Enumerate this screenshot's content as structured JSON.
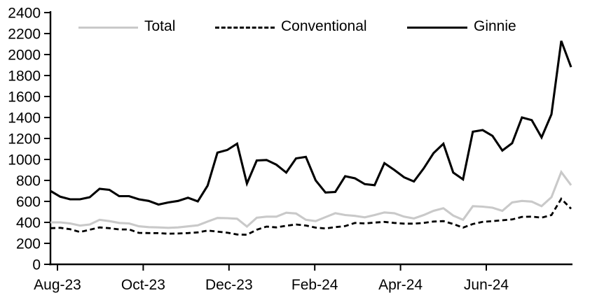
{
  "chart_data": {
    "type": "line",
    "title": "",
    "grid": false,
    "legend": {
      "position": "top"
    },
    "x_axis": {
      "tick_labels": [
        "Aug-23",
        "Oct-23",
        "Dec-23",
        "Feb-24",
        "Apr-24",
        "Jun-24"
      ]
    },
    "y_axis": {
      "min": 0,
      "max": 2400,
      "tick_step": 200,
      "tick_labels": [
        "0",
        "200",
        "400",
        "600",
        "800",
        "1000",
        "1200",
        "1400",
        "1600",
        "1800",
        "2000",
        "2200",
        "2400"
      ]
    },
    "series": [
      {
        "name": "Total",
        "color": "#c9c9c9",
        "line_style": "solid",
        "values": [
          400,
          400,
          390,
          370,
          380,
          425,
          412,
          395,
          390,
          363,
          355,
          352,
          348,
          352,
          362,
          372,
          408,
          442,
          440,
          435,
          360,
          445,
          455,
          455,
          492,
          485,
          425,
          412,
          450,
          487,
          470,
          462,
          448,
          470,
          495,
          487,
          455,
          437,
          470,
          510,
          535,
          465,
          425,
          555,
          550,
          540,
          510,
          590,
          605,
          598,
          555,
          640,
          880,
          755
        ]
      },
      {
        "name": "Conventional",
        "color": "#000000",
        "line_style": "dashed",
        "values": [
          345,
          348,
          335,
          308,
          330,
          352,
          345,
          333,
          333,
          300,
          298,
          297,
          292,
          294,
          298,
          305,
          322,
          312,
          302,
          285,
          282,
          330,
          360,
          352,
          368,
          380,
          370,
          350,
          342,
          355,
          365,
          395,
          390,
          398,
          405,
          395,
          388,
          388,
          395,
          408,
          412,
          385,
          350,
          385,
          405,
          412,
          420,
          428,
          452,
          455,
          445,
          470,
          625,
          530
        ]
      },
      {
        "name": "Ginnie",
        "color": "#000000",
        "line_style": "solid",
        "values": [
          700,
          645,
          620,
          620,
          640,
          720,
          710,
          650,
          650,
          620,
          605,
          570,
          590,
          605,
          635,
          600,
          750,
          1065,
          1090,
          1150,
          770,
          990,
          995,
          950,
          875,
          1010,
          1025,
          800,
          685,
          690,
          840,
          820,
          765,
          755,
          965,
          900,
          830,
          790,
          915,
          1060,
          1150,
          875,
          810,
          1265,
          1280,
          1225,
          1085,
          1155,
          1400,
          1375,
          1210,
          1430,
          2130,
          1880
        ]
      }
    ]
  }
}
